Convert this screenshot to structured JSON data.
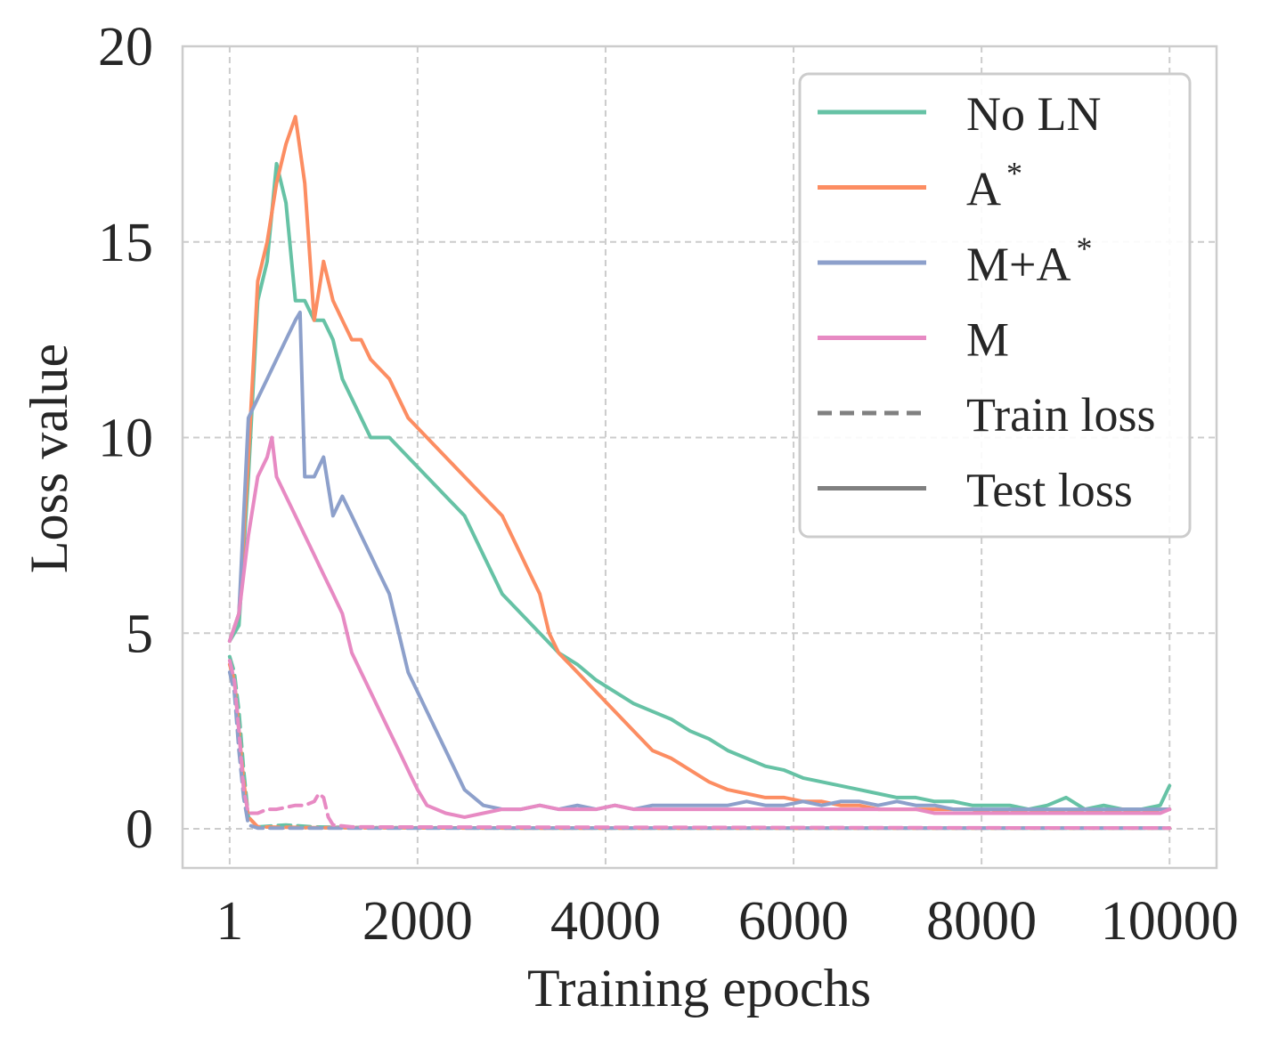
{
  "chart_data": {
    "type": "line",
    "title": "",
    "xlabel": "Training epochs",
    "ylabel": "Loss value",
    "xlim": [
      -500,
      10500
    ],
    "ylim": [
      -1,
      20
    ],
    "xticks": [
      1,
      2000,
      4000,
      6000,
      8000,
      10000
    ],
    "xtick_labels": [
      "1",
      "2000",
      "4000",
      "6000",
      "8000",
      "10000"
    ],
    "yticks": [
      0,
      5,
      10,
      15,
      20
    ],
    "ytick_labels": [
      "0",
      "5",
      "10",
      "15",
      "20"
    ],
    "grid": true,
    "legend_position": "top-right",
    "legend": [
      {
        "label": "No LN",
        "sup": "",
        "color": "#66c2a5",
        "style": "solid"
      },
      {
        "label": "A",
        "sup": "*",
        "color": "#fc8d62",
        "style": "solid"
      },
      {
        "label": "M+A",
        "sup": "*",
        "color": "#8da0cb",
        "style": "solid"
      },
      {
        "label": "M",
        "sup": "",
        "color": "#e78ac3",
        "style": "solid"
      },
      {
        "label": "Train loss",
        "sup": "",
        "color": "#808080",
        "style": "dashed"
      },
      {
        "label": "Test loss",
        "sup": "",
        "color": "#808080",
        "style": "solid"
      }
    ],
    "series": [
      {
        "name": "No LN (test)",
        "color": "#66c2a5",
        "dash": false,
        "points": [
          [
            1,
            4.8
          ],
          [
            100,
            5.2
          ],
          [
            200,
            9.0
          ],
          [
            300,
            13.5
          ],
          [
            400,
            14.5
          ],
          [
            500,
            17.0
          ],
          [
            600,
            16.0
          ],
          [
            700,
            13.5
          ],
          [
            800,
            13.5
          ],
          [
            900,
            13.0
          ],
          [
            1000,
            13.0
          ],
          [
            1100,
            12.5
          ],
          [
            1200,
            11.5
          ],
          [
            1300,
            11.0
          ],
          [
            1400,
            10.5
          ],
          [
            1500,
            10.0
          ],
          [
            1700,
            10.0
          ],
          [
            1900,
            9.5
          ],
          [
            2100,
            9.0
          ],
          [
            2300,
            8.5
          ],
          [
            2500,
            8.0
          ],
          [
            2700,
            7.0
          ],
          [
            2900,
            6.0
          ],
          [
            3100,
            5.5
          ],
          [
            3300,
            5.0
          ],
          [
            3500,
            4.5
          ],
          [
            3700,
            4.2
          ],
          [
            3900,
            3.8
          ],
          [
            4100,
            3.5
          ],
          [
            4300,
            3.2
          ],
          [
            4500,
            3.0
          ],
          [
            4700,
            2.8
          ],
          [
            4900,
            2.5
          ],
          [
            5100,
            2.3
          ],
          [
            5300,
            2.0
          ],
          [
            5500,
            1.8
          ],
          [
            5700,
            1.6
          ],
          [
            5900,
            1.5
          ],
          [
            6100,
            1.3
          ],
          [
            6300,
            1.2
          ],
          [
            6500,
            1.1
          ],
          [
            6700,
            1.0
          ],
          [
            6900,
            0.9
          ],
          [
            7100,
            0.8
          ],
          [
            7300,
            0.8
          ],
          [
            7500,
            0.7
          ],
          [
            7700,
            0.7
          ],
          [
            7900,
            0.6
          ],
          [
            8100,
            0.6
          ],
          [
            8300,
            0.6
          ],
          [
            8500,
            0.5
          ],
          [
            8700,
            0.6
          ],
          [
            8900,
            0.8
          ],
          [
            9100,
            0.5
          ],
          [
            9300,
            0.6
          ],
          [
            9500,
            0.5
          ],
          [
            9700,
            0.5
          ],
          [
            9900,
            0.6
          ],
          [
            10000,
            1.1
          ]
        ]
      },
      {
        "name": "A* (test)",
        "color": "#fc8d62",
        "dash": false,
        "points": [
          [
            1,
            4.8
          ],
          [
            100,
            5.5
          ],
          [
            200,
            9.5
          ],
          [
            300,
            14.0
          ],
          [
            400,
            15.0
          ],
          [
            500,
            16.5
          ],
          [
            600,
            17.5
          ],
          [
            700,
            18.2
          ],
          [
            800,
            16.5
          ],
          [
            900,
            13.0
          ],
          [
            1000,
            14.5
          ],
          [
            1100,
            13.5
          ],
          [
            1200,
            13.0
          ],
          [
            1300,
            12.5
          ],
          [
            1400,
            12.5
          ],
          [
            1500,
            12.0
          ],
          [
            1700,
            11.5
          ],
          [
            1900,
            10.5
          ],
          [
            2100,
            10.0
          ],
          [
            2300,
            9.5
          ],
          [
            2500,
            9.0
          ],
          [
            2700,
            8.5
          ],
          [
            2900,
            8.0
          ],
          [
            3000,
            7.5
          ],
          [
            3100,
            7.0
          ],
          [
            3200,
            6.5
          ],
          [
            3300,
            6.0
          ],
          [
            3400,
            5.0
          ],
          [
            3500,
            4.5
          ],
          [
            3700,
            4.0
          ],
          [
            3900,
            3.5
          ],
          [
            4100,
            3.0
          ],
          [
            4300,
            2.5
          ],
          [
            4500,
            2.0
          ],
          [
            4700,
            1.8
          ],
          [
            4900,
            1.5
          ],
          [
            5100,
            1.2
          ],
          [
            5300,
            1.0
          ],
          [
            5500,
            0.9
          ],
          [
            5700,
            0.8
          ],
          [
            5900,
            0.8
          ],
          [
            6100,
            0.7
          ],
          [
            6300,
            0.7
          ],
          [
            6500,
            0.6
          ],
          [
            6700,
            0.6
          ],
          [
            6900,
            0.5
          ],
          [
            7100,
            0.5
          ],
          [
            7300,
            0.5
          ],
          [
            7500,
            0.5
          ],
          [
            7700,
            0.5
          ],
          [
            7900,
            0.5
          ],
          [
            8100,
            0.4
          ],
          [
            8300,
            0.5
          ],
          [
            8500,
            0.4
          ],
          [
            8700,
            0.5
          ],
          [
            8900,
            0.4
          ],
          [
            9100,
            0.5
          ],
          [
            9300,
            0.4
          ],
          [
            9500,
            0.5
          ],
          [
            9700,
            0.4
          ],
          [
            9900,
            0.5
          ],
          [
            10000,
            0.5
          ]
        ]
      },
      {
        "name": "M+A* (test)",
        "color": "#8da0cb",
        "dash": false,
        "points": [
          [
            1,
            4.8
          ],
          [
            100,
            5.5
          ],
          [
            200,
            10.5
          ],
          [
            300,
            11.0
          ],
          [
            400,
            11.5
          ],
          [
            500,
            12.0
          ],
          [
            600,
            12.5
          ],
          [
            700,
            13.0
          ],
          [
            750,
            13.2
          ],
          [
            800,
            9.0
          ],
          [
            900,
            9.0
          ],
          [
            1000,
            9.5
          ],
          [
            1100,
            8.0
          ],
          [
            1200,
            8.5
          ],
          [
            1300,
            8.0
          ],
          [
            1400,
            7.5
          ],
          [
            1500,
            7.0
          ],
          [
            1600,
            6.5
          ],
          [
            1700,
            6.0
          ],
          [
            1800,
            5.0
          ],
          [
            1900,
            4.0
          ],
          [
            2000,
            3.5
          ],
          [
            2100,
            3.0
          ],
          [
            2200,
            2.5
          ],
          [
            2300,
            2.0
          ],
          [
            2400,
            1.5
          ],
          [
            2500,
            1.0
          ],
          [
            2700,
            0.6
          ],
          [
            2900,
            0.5
          ],
          [
            3100,
            0.5
          ],
          [
            3300,
            0.6
          ],
          [
            3500,
            0.5
          ],
          [
            3700,
            0.6
          ],
          [
            3900,
            0.5
          ],
          [
            4100,
            0.6
          ],
          [
            4300,
            0.5
          ],
          [
            4500,
            0.6
          ],
          [
            4700,
            0.6
          ],
          [
            4900,
            0.6
          ],
          [
            5100,
            0.6
          ],
          [
            5300,
            0.6
          ],
          [
            5500,
            0.7
          ],
          [
            5700,
            0.6
          ],
          [
            5900,
            0.6
          ],
          [
            6100,
            0.7
          ],
          [
            6300,
            0.6
          ],
          [
            6500,
            0.7
          ],
          [
            6700,
            0.7
          ],
          [
            6900,
            0.6
          ],
          [
            7100,
            0.7
          ],
          [
            7300,
            0.6
          ],
          [
            7500,
            0.6
          ],
          [
            7700,
            0.5
          ],
          [
            7900,
            0.5
          ],
          [
            8100,
            0.5
          ],
          [
            8300,
            0.5
          ],
          [
            8500,
            0.5
          ],
          [
            8700,
            0.5
          ],
          [
            8900,
            0.5
          ],
          [
            9100,
            0.5
          ],
          [
            9300,
            0.5
          ],
          [
            9500,
            0.5
          ],
          [
            9700,
            0.5
          ],
          [
            9900,
            0.5
          ],
          [
            10000,
            0.5
          ]
        ]
      },
      {
        "name": "M (test)",
        "color": "#e78ac3",
        "dash": false,
        "points": [
          [
            1,
            4.8
          ],
          [
            100,
            5.5
          ],
          [
            200,
            7.5
          ],
          [
            300,
            9.0
          ],
          [
            400,
            9.5
          ],
          [
            450,
            10.0
          ],
          [
            500,
            9.0
          ],
          [
            600,
            8.5
          ],
          [
            700,
            8.0
          ],
          [
            800,
            7.5
          ],
          [
            900,
            7.0
          ],
          [
            1000,
            6.5
          ],
          [
            1100,
            6.0
          ],
          [
            1200,
            5.5
          ],
          [
            1300,
            4.5
          ],
          [
            1400,
            4.0
          ],
          [
            1500,
            3.5
          ],
          [
            1600,
            3.0
          ],
          [
            1700,
            2.5
          ],
          [
            1800,
            2.0
          ],
          [
            1900,
            1.5
          ],
          [
            2000,
            1.0
          ],
          [
            2100,
            0.6
          ],
          [
            2300,
            0.4
          ],
          [
            2500,
            0.3
          ],
          [
            2700,
            0.4
          ],
          [
            2900,
            0.5
          ],
          [
            3100,
            0.5
          ],
          [
            3300,
            0.6
          ],
          [
            3500,
            0.5
          ],
          [
            3700,
            0.5
          ],
          [
            3900,
            0.5
          ],
          [
            4100,
            0.6
          ],
          [
            4300,
            0.5
          ],
          [
            4500,
            0.5
          ],
          [
            4700,
            0.5
          ],
          [
            4900,
            0.5
          ],
          [
            5100,
            0.5
          ],
          [
            5300,
            0.5
          ],
          [
            5500,
            0.5
          ],
          [
            5700,
            0.5
          ],
          [
            5900,
            0.5
          ],
          [
            6100,
            0.5
          ],
          [
            6300,
            0.5
          ],
          [
            6500,
            0.5
          ],
          [
            6700,
            0.5
          ],
          [
            6900,
            0.5
          ],
          [
            7100,
            0.5
          ],
          [
            7300,
            0.5
          ],
          [
            7500,
            0.4
          ],
          [
            7700,
            0.4
          ],
          [
            7900,
            0.4
          ],
          [
            8100,
            0.4
          ],
          [
            8300,
            0.4
          ],
          [
            8500,
            0.4
          ],
          [
            8700,
            0.4
          ],
          [
            8900,
            0.4
          ],
          [
            9100,
            0.4
          ],
          [
            9300,
            0.4
          ],
          [
            9500,
            0.4
          ],
          [
            9700,
            0.4
          ],
          [
            9900,
            0.4
          ],
          [
            10000,
            0.5
          ]
        ]
      },
      {
        "name": "No LN (train)",
        "color": "#66c2a5",
        "dash": true,
        "points": [
          [
            1,
            4.4
          ],
          [
            50,
            4.0
          ],
          [
            100,
            3.0
          ],
          [
            150,
            1.5
          ],
          [
            200,
            0.3
          ],
          [
            300,
            0.05
          ],
          [
            600,
            0.1
          ],
          [
            900,
            0.05
          ],
          [
            1500,
            0.03
          ],
          [
            3000,
            0.02
          ],
          [
            10000,
            0.02
          ]
        ]
      },
      {
        "name": "A* (train)",
        "color": "#fc8d62",
        "dash": true,
        "points": [
          [
            1,
            4.2
          ],
          [
            50,
            3.8
          ],
          [
            100,
            2.5
          ],
          [
            150,
            1.2
          ],
          [
            200,
            0.3
          ],
          [
            300,
            0.05
          ],
          [
            900,
            0.03
          ],
          [
            3000,
            0.02
          ],
          [
            10000,
            0.02
          ]
        ]
      },
      {
        "name": "M+A* (train)",
        "color": "#8da0cb",
        "dash": true,
        "points": [
          [
            1,
            4.0
          ],
          [
            50,
            3.5
          ],
          [
            100,
            2.0
          ],
          [
            150,
            0.8
          ],
          [
            200,
            0.1
          ],
          [
            300,
            0.02
          ],
          [
            10000,
            0.02
          ]
        ]
      },
      {
        "name": "M (train)",
        "color": "#e78ac3",
        "dash": true,
        "points": [
          [
            1,
            4.3
          ],
          [
            50,
            3.8
          ],
          [
            100,
            2.5
          ],
          [
            150,
            1.0
          ],
          [
            200,
            0.4
          ],
          [
            300,
            0.4
          ],
          [
            400,
            0.5
          ],
          [
            500,
            0.5
          ],
          [
            600,
            0.55
          ],
          [
            700,
            0.6
          ],
          [
            800,
            0.6
          ],
          [
            900,
            0.7
          ],
          [
            950,
            0.9
          ],
          [
            1000,
            0.8
          ],
          [
            1050,
            0.3
          ],
          [
            1100,
            0.1
          ],
          [
            1300,
            0.05
          ],
          [
            10000,
            0.02
          ]
        ]
      }
    ]
  }
}
